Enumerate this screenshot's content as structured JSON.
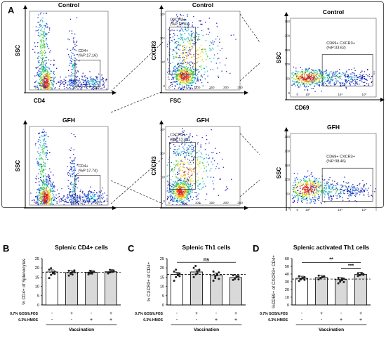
{
  "panel_a": {
    "label": "A",
    "plots": [
      {
        "title": "Control",
        "xlabel": "CD4",
        "ylabel": "SSC",
        "gate_label": "CD4+\n(%P:17.16)",
        "xticks": [
          "0",
          "10³",
          "10⁴",
          "10⁵"
        ],
        "yticks": []
      },
      {
        "title": "Control",
        "xlabel": "FSC",
        "ylabel": "CXCR3",
        "gate_label": "CXCR3+\n(%P:18.81)",
        "xticks": [
          "0",
          "50",
          "100",
          "150",
          "200",
          "250"
        ],
        "yticks": [
          "10⁵",
          "10⁴",
          "10³",
          "0"
        ]
      },
      {
        "title": "Control",
        "xlabel": "CD69",
        "ylabel": "SSC",
        "gate_label": "CD69+ CXCR3+\n(%P:33.62)",
        "xticks": [
          "0",
          "10³",
          "10⁴",
          "10⁵"
        ],
        "yticks": [
          "250",
          "200",
          "150",
          "100",
          "50",
          "0"
        ]
      },
      {
        "title": "GFH",
        "xlabel": "CD4",
        "ylabel": "SSC",
        "gate_label": "CD4+\n(%P:17.74)",
        "xticks": [
          "0",
          "10³",
          "10⁴",
          "10⁵"
        ],
        "yticks": []
      },
      {
        "title": "GFH",
        "xlabel": "FSC",
        "ylabel": "CXCR3",
        "gate_label": "CXCR3+\n(%P:13.29)",
        "xticks": [
          "0",
          "50",
          "100",
          "150",
          "200",
          "250"
        ],
        "yticks": [
          "10⁵",
          "10⁴",
          "10³",
          "0"
        ]
      },
      {
        "title": "GFH",
        "xlabel": "CD69",
        "ylabel": "SSC",
        "gate_label": "CD69+ CXCR3+\n(%P:38.46)",
        "xticks": [
          "0",
          "10³",
          "10⁴",
          "10⁵"
        ],
        "yticks": [
          "250",
          "200",
          "150",
          "100",
          "50",
          "0"
        ]
      }
    ]
  },
  "chart_data": [
    {
      "panel": "B",
      "type": "bar",
      "title": "Splenic CD4+ cells",
      "ylabel": "% CD4+ of Splenocytes",
      "ylim": [
        0,
        25
      ],
      "yticks": [
        "0",
        "5",
        "10",
        "15",
        "20",
        "25"
      ],
      "values": [
        17.8,
        17.4,
        17.6,
        17.9
      ],
      "fills": [
        "#ffffff",
        "#d9d9d9",
        "#d9d9d9",
        "#d9d9d9"
      ],
      "dashed_ref": 17.6,
      "points": [
        [
          14.5,
          16.2,
          17.5,
          18,
          19,
          19.8,
          17,
          16.8
        ],
        [
          15.8,
          16.8,
          17.6,
          18,
          18.4,
          17.2,
          16.4,
          18.6
        ],
        [
          16.5,
          17,
          17.6,
          18,
          17.4,
          18.3,
          16.9,
          17.8
        ],
        [
          17,
          17.6,
          18.2,
          18.6,
          17.3,
          18.9,
          17.8,
          18.1
        ]
      ],
      "significance": []
    },
    {
      "panel": "C",
      "type": "bar",
      "title": "Splenic Th1 cells",
      "ylabel": "% CXCR3+ of CD4+",
      "ylim": [
        0,
        25
      ],
      "yticks": [
        "0",
        "5",
        "10",
        "15",
        "20",
        "25"
      ],
      "values": [
        16.5,
        17.8,
        16.0,
        14.8
      ],
      "fills": [
        "#ffffff",
        "#d9d9d9",
        "#d9d9d9",
        "#d9d9d9"
      ],
      "dashed_ref": 16.5,
      "points": [
        [
          13,
          15,
          16,
          17,
          18,
          19,
          16.5,
          15.5
        ],
        [
          15,
          16.5,
          18,
          19,
          20,
          21,
          17,
          18.6
        ],
        [
          13,
          14.5,
          16,
          17.5,
          18,
          15.5,
          16.6,
          14
        ],
        [
          13.5,
          14,
          15,
          15.5,
          16,
          14.4,
          15.2,
          13.8
        ]
      ],
      "significance": [
        {
          "from": 0,
          "to": 3,
          "label": "ns",
          "y": 23
        }
      ]
    },
    {
      "panel": "D",
      "type": "bar",
      "title": "Splenic activated Th1 cells",
      "ylabel": "%CD69+ of CXCR3+ CD4+",
      "ylim": [
        0,
        60
      ],
      "yticks": [
        "0",
        "10",
        "20",
        "30",
        "40",
        "50",
        "60"
      ],
      "values": [
        34.5,
        35.5,
        32.8,
        39.5
      ],
      "fills": [
        "#ffffff",
        "#d9d9d9",
        "#d9d9d9",
        "#d9d9d9"
      ],
      "dashed_ref": 33.5,
      "points": [
        [
          31,
          33,
          34.5,
          36,
          37,
          33.5,
          35,
          32.5
        ],
        [
          33,
          34.5,
          36,
          37,
          38,
          35,
          35.8,
          36.5
        ],
        [
          28,
          30,
          32,
          34,
          35,
          31,
          33.5,
          29.5
        ],
        [
          37.5,
          38.5,
          39.5,
          40,
          41,
          38.8,
          40.4,
          39
        ]
      ],
      "significance": [
        {
          "from": 0,
          "to": 3,
          "label": "**",
          "y": 55
        },
        {
          "from": 2,
          "to": 3,
          "label": "***",
          "y": 47
        }
      ]
    }
  ],
  "bar_axis": {
    "row1_label": "0.7% GOS/lcFOS",
    "row2_label": "0.3% HMOS",
    "row1": [
      "-",
      "+",
      "-",
      "+"
    ],
    "row2": [
      "-",
      "-",
      "+",
      "+"
    ],
    "group_label": "Vaccination"
  }
}
